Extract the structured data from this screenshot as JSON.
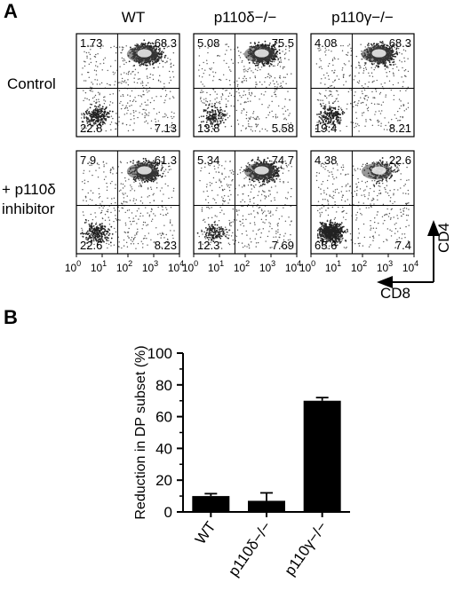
{
  "panel_a": {
    "letter": "A",
    "columns": [
      "WT",
      "p110δ−/−",
      "p110γ−/−"
    ],
    "rows": [
      {
        "label_lines": [
          "Control"
        ]
      },
      {
        "label_lines": [
          "+ p110δ",
          "inhibitor"
        ]
      }
    ],
    "quadrants": [
      [
        {
          "ul": "1.73",
          "ur": "68.3",
          "ll": "22.8",
          "lr": "7.13"
        },
        {
          "ul": "5.08",
          "ur": "75.5",
          "ll": "13.8",
          "lr": "5.58"
        },
        {
          "ul": "4.08",
          "ur": "68.3",
          "ll": "19.4",
          "lr": "8.21"
        }
      ],
      [
        {
          "ul": "7.9",
          "ur": "61.3",
          "ll": "22.6",
          "lr": "8.23"
        },
        {
          "ul": "5.34",
          "ur": "74.7",
          "ll": "12.3",
          "lr": "7.69"
        },
        {
          "ul": "4.38",
          "ur": "22.6",
          "ll": "65.6",
          "lr": "7.4"
        }
      ]
    ],
    "axis_ticks": [
      "10",
      "10",
      "10",
      "10",
      "10"
    ],
    "axis_tick_exponents": [
      "0",
      "1",
      "2",
      "3",
      "4"
    ],
    "y_axis_name": "CD4",
    "x_axis_name": "CD8"
  },
  "chart_data": {
    "type": "bar",
    "panel_letter": "B",
    "categories": [
      "WT",
      "p110δ−/−",
      "p110γ−/−"
    ],
    "values": [
      10,
      7,
      70
    ],
    "errors": [
      1.5,
      5,
      2
    ],
    "ylabel": "Reduction in DP subset (%)",
    "xlabel": "",
    "ylim": [
      0,
      100
    ],
    "yticks": [
      0,
      20,
      40,
      60,
      80,
      100
    ],
    "grid": false
  }
}
